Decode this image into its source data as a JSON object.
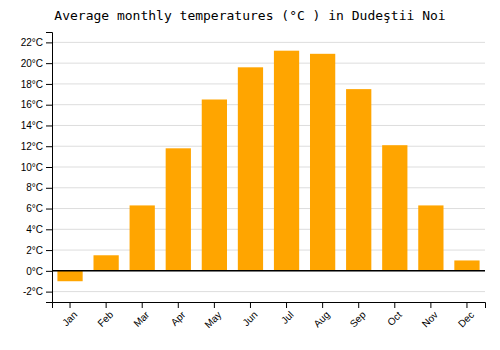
{
  "chart_data": {
    "type": "bar",
    "title": "Average monthly temperatures (°C ) in Dudeştii Noi",
    "categories": [
      "Jan",
      "Feb",
      "Mar",
      "Apr",
      "May",
      "Jun",
      "Jul",
      "Aug",
      "Sep",
      "Oct",
      "Nov",
      "Dec"
    ],
    "values": [
      -1.0,
      1.5,
      6.3,
      11.8,
      16.5,
      19.6,
      21.2,
      20.9,
      17.5,
      12.1,
      6.3,
      1.0
    ],
    "color": "#FFA500",
    "ylim": [
      -3,
      23
    ],
    "yticks": [
      {
        "value": -2,
        "label": "-2°C"
      },
      {
        "value": 0,
        "label": "0°C"
      },
      {
        "value": 2,
        "label": "2°C"
      },
      {
        "value": 4,
        "label": "4°C"
      },
      {
        "value": 6,
        "label": "6°C"
      },
      {
        "value": 8,
        "label": "8°C"
      },
      {
        "value": 10,
        "label": "10°C"
      },
      {
        "value": 12,
        "label": "12°C"
      },
      {
        "value": 14,
        "label": "14°C"
      },
      {
        "value": 16,
        "label": "16°C"
      },
      {
        "value": 18,
        "label": "18°C"
      },
      {
        "value": 20,
        "label": "20°C"
      },
      {
        "value": 22,
        "label": "22°C"
      }
    ],
    "grid": true
  }
}
